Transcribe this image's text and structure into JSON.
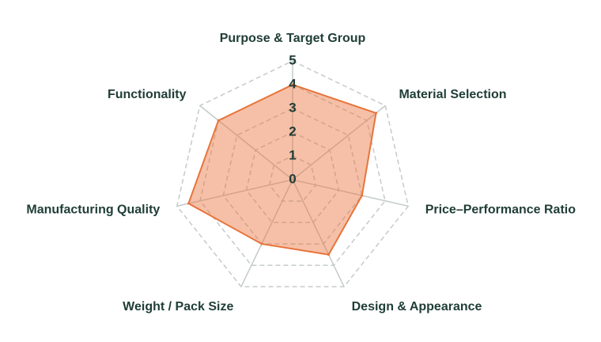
{
  "chart_data": {
    "type": "radar",
    "categories": [
      "Purpose & Target Group",
      "Material Selection",
      "Price–Performance Ratio",
      "Design & Appearance",
      "Weight / Pack Size",
      "Manufacturing Quality",
      "Functionality"
    ],
    "values": [
      4,
      4.5,
      3,
      3.5,
      3,
      4.5,
      4
    ],
    "color": "#e8743b",
    "rlim": [
      0,
      5
    ],
    "rticks": [
      0,
      1,
      2,
      3,
      4,
      5
    ],
    "grid": true
  }
}
